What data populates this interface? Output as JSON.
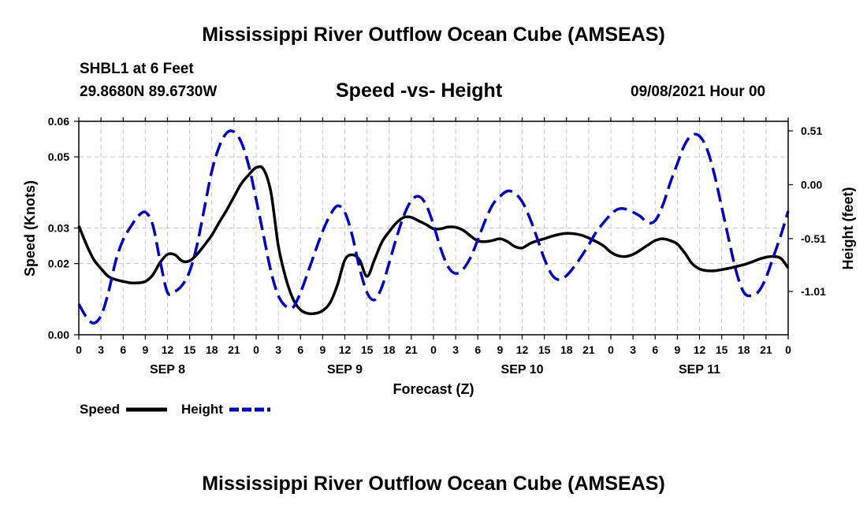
{
  "header": {
    "title": "Mississippi River Outflow Ocean Cube (AMSEAS)",
    "station": "SHBL1 at 6 Feet",
    "coords": "29.8680N  89.6730W",
    "subtitle": "Speed -vs- Height",
    "datetime": "09/08/2021 Hour 00"
  },
  "footer": {
    "title": "Mississippi River Outflow Ocean Cube (AMSEAS)"
  },
  "legend": {
    "speed_label": "Speed",
    "height_label": "Height"
  },
  "chart_data": {
    "type": "line",
    "xlabel": "Forecast (Z)",
    "ylabel_left": "Speed (Knots)",
    "ylabel_right": "Height (feet)",
    "x_ticks": [
      "0",
      "3",
      "6",
      "9",
      "12",
      "15",
      "18",
      "21",
      "0",
      "3",
      "6",
      "9",
      "12",
      "15",
      "18",
      "21",
      "0",
      "3",
      "6",
      "9",
      "12",
      "15",
      "18",
      "21",
      "0",
      "3",
      "6",
      "9",
      "12",
      "15",
      "18",
      "21",
      "0"
    ],
    "day_labels": [
      {
        "label": "SEP 8",
        "hour": 12
      },
      {
        "label": "SEP 9",
        "hour": 36
      },
      {
        "label": "SEP 10",
        "hour": 60
      },
      {
        "label": "SEP 11",
        "hour": 84
      }
    ],
    "x_range_hours": [
      0,
      96
    ],
    "y_left": {
      "range": [
        0.0,
        0.06
      ],
      "ticks": [
        0.0,
        0.02,
        0.03,
        0.05,
        0.06
      ],
      "tick_labels": [
        "0.00",
        "0.02",
        "0.03",
        "0.05",
        "0.06"
      ]
    },
    "y_right": {
      "range": [
        -1.42,
        0.6
      ],
      "ticks": [
        0.51,
        0.0,
        -0.51,
        -1.01
      ],
      "tick_labels": [
        "0.51",
        "0.00",
        "-0.51",
        "-1.01"
      ]
    },
    "grid": true,
    "series": [
      {
        "name": "Speed",
        "axis": "left",
        "color": "#000000",
        "style": "solid",
        "points": [
          [
            0,
            0.0306
          ],
          [
            1,
            0.0255
          ],
          [
            2,
            0.0212
          ],
          [
            3,
            0.0186
          ],
          [
            4,
            0.0164
          ],
          [
            5,
            0.0155
          ],
          [
            6,
            0.015
          ],
          [
            7,
            0.0146
          ],
          [
            8,
            0.0146
          ],
          [
            9,
            0.015
          ],
          [
            10,
            0.0168
          ],
          [
            11,
            0.0203
          ],
          [
            12,
            0.0226
          ],
          [
            13,
            0.0225
          ],
          [
            14,
            0.0207
          ],
          [
            15,
            0.0208
          ],
          [
            16,
            0.0226
          ],
          [
            17,
            0.0252
          ],
          [
            18,
            0.028
          ],
          [
            19,
            0.0316
          ],
          [
            20,
            0.035
          ],
          [
            21,
            0.0388
          ],
          [
            22,
            0.0425
          ],
          [
            23,
            0.045
          ],
          [
            24,
            0.047
          ],
          [
            25,
            0.0465
          ],
          [
            26,
            0.04
          ],
          [
            27,
            0.025
          ],
          [
            28,
            0.016
          ],
          [
            29,
            0.01
          ],
          [
            30,
            0.007
          ],
          [
            31,
            0.006
          ],
          [
            32,
            0.006
          ],
          [
            33,
            0.0068
          ],
          [
            34,
            0.009
          ],
          [
            35,
            0.014
          ],
          [
            36,
            0.021
          ],
          [
            37,
            0.0225
          ],
          [
            38,
            0.021
          ],
          [
            39,
            0.0164
          ],
          [
            40,
            0.021
          ],
          [
            41,
            0.026
          ],
          [
            42,
            0.029
          ],
          [
            43,
            0.0315
          ],
          [
            44,
            0.033
          ],
          [
            45,
            0.033
          ],
          [
            46,
            0.032
          ],
          [
            47,
            0.031
          ],
          [
            48,
            0.0298
          ],
          [
            49,
            0.0298
          ],
          [
            50,
            0.0303
          ],
          [
            51,
            0.0302
          ],
          [
            52,
            0.0294
          ],
          [
            53,
            0.0278
          ],
          [
            54,
            0.0264
          ],
          [
            55,
            0.0262
          ],
          [
            56,
            0.0265
          ],
          [
            57,
            0.027
          ],
          [
            58,
            0.0262
          ],
          [
            59,
            0.0248
          ],
          [
            60,
            0.0244
          ],
          [
            61,
            0.0256
          ],
          [
            62,
            0.0264
          ],
          [
            63,
            0.027
          ],
          [
            64,
            0.0277
          ],
          [
            65,
            0.0282
          ],
          [
            66,
            0.0285
          ],
          [
            67,
            0.0284
          ],
          [
            68,
            0.028
          ],
          [
            69,
            0.0272
          ],
          [
            70,
            0.0262
          ],
          [
            71,
            0.025
          ],
          [
            72,
            0.0232
          ],
          [
            73,
            0.0222
          ],
          [
            74,
            0.022
          ],
          [
            75,
            0.0226
          ],
          [
            76,
            0.0238
          ],
          [
            77,
            0.0252
          ],
          [
            78,
            0.0265
          ],
          [
            79,
            0.027
          ],
          [
            80,
            0.0265
          ],
          [
            81,
            0.0255
          ],
          [
            82,
            0.023
          ],
          [
            83,
            0.02
          ],
          [
            84,
            0.0185
          ],
          [
            85,
            0.018
          ],
          [
            86,
            0.018
          ],
          [
            87,
            0.0183
          ],
          [
            88,
            0.0187
          ],
          [
            89,
            0.0192
          ],
          [
            90,
            0.0197
          ],
          [
            91,
            0.0204
          ],
          [
            92,
            0.0212
          ],
          [
            93,
            0.0218
          ],
          [
            94,
            0.022
          ],
          [
            95,
            0.0215
          ],
          [
            96,
            0.0188
          ]
        ]
      },
      {
        "name": "Height",
        "axis": "right",
        "color": "#0000cc",
        "style": "dashed",
        "points": [
          [
            0,
            -1.13
          ],
          [
            1,
            -1.25
          ],
          [
            2,
            -1.31
          ],
          [
            3,
            -1.24
          ],
          [
            4,
            -1.02
          ],
          [
            5,
            -0.72
          ],
          [
            6,
            -0.52
          ],
          [
            7,
            -0.4
          ],
          [
            8,
            -0.3
          ],
          [
            9,
            -0.26
          ],
          [
            10,
            -0.38
          ],
          [
            11,
            -0.72
          ],
          [
            12,
            -1.02
          ],
          [
            13,
            -1.01
          ],
          [
            14,
            -0.95
          ],
          [
            15,
            -0.82
          ],
          [
            16,
            -0.57
          ],
          [
            17,
            -0.22
          ],
          [
            18,
            0.13
          ],
          [
            19,
            0.36
          ],
          [
            20,
            0.49
          ],
          [
            21,
            0.5
          ],
          [
            22,
            0.4
          ],
          [
            23,
            0.18
          ],
          [
            24,
            -0.14
          ],
          [
            25,
            -0.48
          ],
          [
            26,
            -0.82
          ],
          [
            27,
            -1.05
          ],
          [
            28,
            -1.15
          ],
          [
            29,
            -1.16
          ],
          [
            30,
            -1.02
          ],
          [
            31,
            -0.83
          ],
          [
            32,
            -0.63
          ],
          [
            33,
            -0.44
          ],
          [
            34,
            -0.29
          ],
          [
            35,
            -0.2
          ],
          [
            36,
            -0.26
          ],
          [
            37,
            -0.48
          ],
          [
            38,
            -0.79
          ],
          [
            39,
            -1.02
          ],
          [
            40,
            -1.09
          ],
          [
            41,
            -0.97
          ],
          [
            42,
            -0.74
          ],
          [
            43,
            -0.5
          ],
          [
            44,
            -0.29
          ],
          [
            45,
            -0.15
          ],
          [
            46,
            -0.11
          ],
          [
            47,
            -0.19
          ],
          [
            48,
            -0.38
          ],
          [
            49,
            -0.61
          ],
          [
            50,
            -0.78
          ],
          [
            51,
            -0.84
          ],
          [
            52,
            -0.8
          ],
          [
            53,
            -0.69
          ],
          [
            54,
            -0.52
          ],
          [
            55,
            -0.34
          ],
          [
            56,
            -0.19
          ],
          [
            57,
            -0.11
          ],
          [
            58,
            -0.06
          ],
          [
            59,
            -0.08
          ],
          [
            60,
            -0.16
          ],
          [
            61,
            -0.31
          ],
          [
            62,
            -0.5
          ],
          [
            63,
            -0.7
          ],
          [
            64,
            -0.85
          ],
          [
            65,
            -0.9
          ],
          [
            66,
            -0.86
          ],
          [
            67,
            -0.78
          ],
          [
            68,
            -0.68
          ],
          [
            69,
            -0.57
          ],
          [
            70,
            -0.45
          ],
          [
            71,
            -0.36
          ],
          [
            72,
            -0.28
          ],
          [
            73,
            -0.23
          ],
          [
            74,
            -0.23
          ],
          [
            75,
            -0.26
          ],
          [
            76,
            -0.3
          ],
          [
            77,
            -0.36
          ],
          [
            78,
            -0.34
          ],
          [
            79,
            -0.2
          ],
          [
            80,
            0.01
          ],
          [
            81,
            0.2
          ],
          [
            82,
            0.38
          ],
          [
            83,
            0.47
          ],
          [
            84,
            0.46
          ],
          [
            85,
            0.34
          ],
          [
            86,
            0.1
          ],
          [
            87,
            -0.21
          ],
          [
            88,
            -0.53
          ],
          [
            89,
            -0.83
          ],
          [
            90,
            -1.02
          ],
          [
            91,
            -1.05
          ],
          [
            92,
            -1.01
          ],
          [
            93,
            -0.88
          ],
          [
            94,
            -0.68
          ],
          [
            95,
            -0.48
          ],
          [
            96,
            -0.25
          ]
        ]
      }
    ]
  }
}
